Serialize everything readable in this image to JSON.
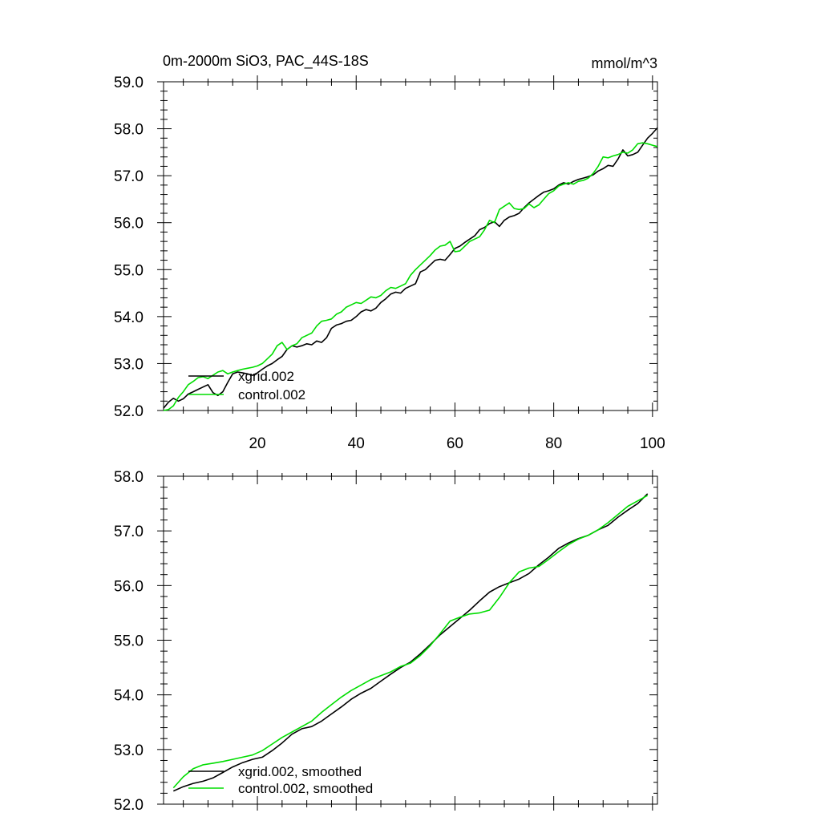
{
  "chart_data": [
    {
      "type": "line",
      "title": "0m-2000m SiO3, PAC_44S-18S",
      "units": "mmol/m^3",
      "xlabel": "",
      "ylabel": "",
      "xlim": [
        1,
        101
      ],
      "ylim": [
        52.0,
        59.0
      ],
      "y_ticks": [
        "52.0",
        "53.0",
        "54.0",
        "55.0",
        "56.0",
        "57.0",
        "58.0",
        "59.0"
      ],
      "x_ticks": [
        "20",
        "40",
        "60",
        "80",
        "100"
      ],
      "legend_position": "bottom-left",
      "series": [
        {
          "name": "xgrid.002",
          "color": "#000000",
          "x": [
            1,
            2,
            3,
            4,
            5,
            6,
            7,
            8,
            9,
            10,
            11,
            12,
            13,
            14,
            15,
            16,
            17,
            18,
            19,
            20,
            21,
            22,
            23,
            24,
            25,
            26,
            27,
            28,
            29,
            30,
            31,
            32,
            33,
            34,
            35,
            36,
            37,
            38,
            39,
            40,
            41,
            42,
            43,
            44,
            45,
            46,
            47,
            48,
            49,
            50,
            51,
            52,
            53,
            54,
            55,
            56,
            57,
            58,
            59,
            60,
            61,
            62,
            63,
            64,
            65,
            66,
            67,
            68,
            69,
            70,
            71,
            72,
            73,
            74,
            75,
            76,
            77,
            78,
            79,
            80,
            81,
            82,
            83,
            84,
            85,
            86,
            87,
            88,
            89,
            90,
            91,
            92,
            93,
            94,
            95,
            96,
            97,
            98,
            99,
            100,
            101
          ],
          "values": [
            52.05,
            52.18,
            52.26,
            52.2,
            52.25,
            52.35,
            52.4,
            52.45,
            52.5,
            52.55,
            52.38,
            52.32,
            52.4,
            52.6,
            52.78,
            52.82,
            52.8,
            52.78,
            52.75,
            52.8,
            52.88,
            52.95,
            53.0,
            53.08,
            53.15,
            53.3,
            53.38,
            53.35,
            53.38,
            53.42,
            53.4,
            53.48,
            53.45,
            53.55,
            53.75,
            53.82,
            53.85,
            53.9,
            53.92,
            54.0,
            54.1,
            54.15,
            54.12,
            54.18,
            54.3,
            54.38,
            54.48,
            54.52,
            54.5,
            54.6,
            54.65,
            54.7,
            54.95,
            55.0,
            55.1,
            55.2,
            55.22,
            55.2,
            55.32,
            55.45,
            55.5,
            55.58,
            55.65,
            55.72,
            55.85,
            55.9,
            55.98,
            56.02,
            55.92,
            56.05,
            56.12,
            56.15,
            56.2,
            56.32,
            56.42,
            56.5,
            56.58,
            56.65,
            56.68,
            56.72,
            56.8,
            56.85,
            56.82,
            56.88,
            56.92,
            56.95,
            56.98,
            57.02,
            57.1,
            57.15,
            57.22,
            57.2,
            57.35,
            57.55,
            57.42,
            57.45,
            57.5,
            57.65,
            57.8,
            57.9,
            58.02
          ]
        },
        {
          "name": "control.002",
          "color": "#00dd00",
          "x": [
            1,
            2,
            3,
            4,
            5,
            6,
            7,
            8,
            9,
            10,
            11,
            12,
            13,
            14,
            15,
            16,
            17,
            18,
            19,
            20,
            21,
            22,
            23,
            24,
            25,
            26,
            27,
            28,
            29,
            30,
            31,
            32,
            33,
            34,
            35,
            36,
            37,
            38,
            39,
            40,
            41,
            42,
            43,
            44,
            45,
            46,
            47,
            48,
            49,
            50,
            51,
            52,
            53,
            54,
            55,
            56,
            57,
            58,
            59,
            60,
            61,
            62,
            63,
            64,
            65,
            66,
            67,
            68,
            69,
            70,
            71,
            72,
            73,
            74,
            75,
            76,
            77,
            78,
            79,
            80,
            81,
            82,
            83,
            84,
            85,
            86,
            87,
            88,
            89,
            90,
            91,
            92,
            93,
            94,
            95,
            96,
            97,
            98,
            99,
            100,
            101
          ],
          "values": [
            52.0,
            52.02,
            52.1,
            52.28,
            52.4,
            52.55,
            52.62,
            52.7,
            52.72,
            52.68,
            52.75,
            52.82,
            52.85,
            52.78,
            52.82,
            52.85,
            52.88,
            52.9,
            52.92,
            52.95,
            53.0,
            53.1,
            53.2,
            53.38,
            53.45,
            53.3,
            53.38,
            53.42,
            53.55,
            53.6,
            53.65,
            53.8,
            53.9,
            53.92,
            53.95,
            54.05,
            54.1,
            54.2,
            54.25,
            54.3,
            54.28,
            54.35,
            54.42,
            54.4,
            54.45,
            54.55,
            54.62,
            54.6,
            54.65,
            54.7,
            54.88,
            55.0,
            55.1,
            55.2,
            55.3,
            55.42,
            55.5,
            55.52,
            55.6,
            55.38,
            55.4,
            55.5,
            55.6,
            55.65,
            55.7,
            55.85,
            56.05,
            56.0,
            56.28,
            56.35,
            56.42,
            56.3,
            56.28,
            56.3,
            56.4,
            56.32,
            56.38,
            56.5,
            56.62,
            56.68,
            56.78,
            56.82,
            56.85,
            56.82,
            56.88,
            56.9,
            56.95,
            57.05,
            57.2,
            57.4,
            57.38,
            57.42,
            57.45,
            57.5,
            57.48,
            57.55,
            57.68,
            57.7,
            57.68,
            57.65,
            57.62
          ]
        }
      ]
    },
    {
      "type": "line",
      "title": "",
      "xlabel": "",
      "ylabel": "",
      "xlim": [
        1,
        101
      ],
      "ylim": [
        52.0,
        58.0
      ],
      "y_ticks": [
        "52.0",
        "53.0",
        "54.0",
        "55.0",
        "56.0",
        "57.0",
        "58.0"
      ],
      "x_ticks": [],
      "legend_position": "bottom-left",
      "series": [
        {
          "name": "xgrid.002, smoothed",
          "color": "#000000",
          "x": [
            3,
            5,
            7,
            9,
            11,
            13,
            15,
            17,
            19,
            21,
            23,
            25,
            27,
            29,
            31,
            33,
            35,
            37,
            39,
            41,
            43,
            45,
            47,
            49,
            51,
            53,
            55,
            57,
            59,
            61,
            63,
            65,
            67,
            69,
            71,
            73,
            75,
            77,
            79,
            81,
            83,
            85,
            87,
            89,
            91,
            93,
            95,
            97,
            99
          ],
          "values": [
            52.24,
            52.32,
            52.38,
            52.42,
            52.48,
            52.58,
            52.68,
            52.76,
            52.82,
            52.86,
            52.98,
            53.12,
            53.28,
            53.38,
            53.42,
            53.52,
            53.65,
            53.78,
            53.92,
            54.03,
            54.12,
            54.25,
            54.38,
            54.5,
            54.6,
            54.75,
            54.92,
            55.1,
            55.25,
            55.4,
            55.55,
            55.72,
            55.88,
            55.98,
            56.05,
            56.12,
            56.22,
            56.38,
            56.52,
            56.68,
            56.78,
            56.86,
            56.92,
            57.02,
            57.1,
            57.25,
            57.38,
            57.5,
            57.68
          ]
        },
        {
          "name": "control.002, smoothed",
          "color": "#00dd00",
          "x": [
            3,
            5,
            7,
            9,
            11,
            13,
            15,
            17,
            19,
            21,
            23,
            25,
            27,
            29,
            31,
            33,
            35,
            37,
            39,
            41,
            43,
            45,
            47,
            49,
            51,
            53,
            55,
            57,
            59,
            61,
            63,
            65,
            67,
            69,
            71,
            73,
            75,
            77,
            79,
            81,
            83,
            85,
            87,
            89,
            91,
            93,
            95,
            97,
            99
          ],
          "values": [
            52.3,
            52.5,
            52.65,
            52.72,
            52.75,
            52.78,
            52.82,
            52.86,
            52.9,
            52.98,
            53.1,
            53.22,
            53.32,
            53.42,
            53.52,
            53.68,
            53.82,
            53.96,
            54.08,
            54.18,
            54.28,
            54.35,
            54.42,
            54.52,
            54.58,
            54.72,
            54.9,
            55.12,
            55.35,
            55.42,
            55.48,
            55.5,
            55.55,
            55.78,
            56.05,
            56.25,
            56.32,
            56.35,
            56.48,
            56.62,
            56.75,
            56.85,
            56.92,
            57.02,
            57.15,
            57.3,
            57.45,
            57.55,
            57.65
          ]
        }
      ]
    }
  ]
}
